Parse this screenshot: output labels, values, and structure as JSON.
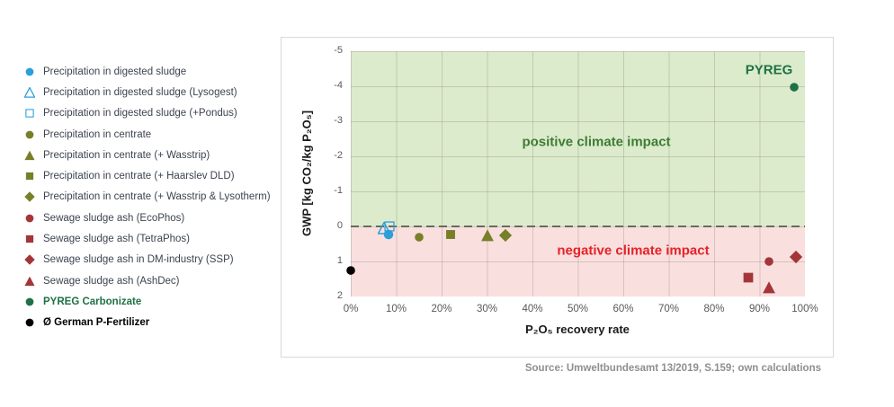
{
  "source_note": "Source: Umweltbundesamt 13/2019, S.159; own calculations",
  "legend": {
    "items": [
      {
        "id": "digested-sludge",
        "label": "Precipitation in digested sludge",
        "shape": "circle",
        "open": false,
        "color": "#2b9fd9"
      },
      {
        "id": "lysogest",
        "label": "Precipitation in digested sludge (Lysogest)",
        "shape": "triangle",
        "open": true,
        "color": "#2b9fd9"
      },
      {
        "id": "pondus",
        "label": "Precipitation in digested sludge (+Pondus)",
        "shape": "square",
        "open": true,
        "color": "#2b9fd9"
      },
      {
        "id": "centrate",
        "label": "Precipitation in centrate",
        "shape": "circle",
        "open": false,
        "color": "#778027"
      },
      {
        "id": "wasstrip",
        "label": "Precipitation in centrate (+ Wasstrip)",
        "shape": "triangle",
        "open": false,
        "color": "#778027"
      },
      {
        "id": "haarslev-dld",
        "label": "Precipitation in centrate (+ Haarslev DLD)",
        "shape": "square",
        "open": false,
        "color": "#778027"
      },
      {
        "id": "wasstrip-lysotherm",
        "label": "Precipitation in centrate (+ Wasstrip & Lysotherm)",
        "shape": "diamond",
        "open": false,
        "color": "#778027"
      },
      {
        "id": "ecophos",
        "label": "Sewage sludge ash (EcoPhos)",
        "shape": "circle",
        "open": false,
        "color": "#a33638"
      },
      {
        "id": "tetraphos",
        "label": "Sewage sludge ash (TetraPhos)",
        "shape": "square",
        "open": false,
        "color": "#a33638"
      },
      {
        "id": "ssp",
        "label": "Sewage sludge ash in DM-industry (SSP)",
        "shape": "diamond",
        "open": false,
        "color": "#a33638"
      },
      {
        "id": "ashdec",
        "label": "Sewage sludge ash (AshDec)",
        "shape": "triangle",
        "open": false,
        "color": "#a33638"
      },
      {
        "id": "pyreg-carbonizate",
        "label": "PYREG Carbonizate",
        "shape": "circle",
        "open": false,
        "color": "#1e7145",
        "label_color": "#1e7145",
        "bold": true
      },
      {
        "id": "german-p-fertilizer",
        "label": "Ø German P-Fertilizer",
        "shape": "circle",
        "open": false,
        "color": "#000000",
        "label_color": "#000000",
        "bold": true
      }
    ]
  },
  "chart": {
    "pyreg_point_label": "PYREG",
    "positive_region_label": "positive climate impact",
    "negative_region_label": "negative climate impact",
    "colors": {
      "positive_bg": "#dcebcc",
      "negative_bg": "#fadfdf",
      "positive_text": "#3e7c34",
      "negative_text": "#e52328",
      "pyreg_text": "#1e7145"
    }
  },
  "chart_data": {
    "type": "scatter",
    "title": "",
    "xlabel": "P₂O₅ recovery rate",
    "ylabel": "GWP [kg CO₂/kg P₂O₅]",
    "xlim": [
      0,
      100
    ],
    "ylim": [
      -5,
      2
    ],
    "y_axis_inverted": true,
    "grid": true,
    "x_ticks": [
      "0%",
      "10%",
      "20%",
      "30%",
      "40%",
      "50%",
      "60%",
      "70%",
      "80%",
      "90%",
      "100%"
    ],
    "y_ticks": [
      "-5",
      "-4",
      "-3",
      "-2",
      "-1",
      "0",
      "1",
      "2"
    ],
    "zero_line": {
      "style": "dashed",
      "y": 0
    },
    "regions": [
      {
        "label": "positive climate impact",
        "y_range": [
          -5,
          0
        ],
        "color": "#dcebcc"
      },
      {
        "label": "negative climate impact",
        "y_range": [
          0,
          2
        ],
        "color": "#fadfdf"
      }
    ],
    "legend_position": "outside-left",
    "series": [
      {
        "id": "digested-sludge",
        "name": "Precipitation in digested sludge",
        "marker": "circle",
        "open": false,
        "color": "#2b9fd9",
        "size": 12,
        "z": 7,
        "points": [
          [
            8.4,
            0.22
          ]
        ]
      },
      {
        "id": "lysogest",
        "name": "Precipitation in digested sludge (Lysogest)",
        "marker": "triangle",
        "open": true,
        "color": "#2b9fd9",
        "size": 14,
        "z": 6,
        "points": [
          [
            7.3,
            0.05
          ]
        ]
      },
      {
        "id": "pondus",
        "name": "Precipitation in digested sludge (+Pondus)",
        "marker": "square",
        "open": true,
        "color": "#2b9fd9",
        "size": 12,
        "z": 5,
        "points": [
          [
            8.6,
            0.0
          ]
        ]
      },
      {
        "id": "centrate",
        "name": "Precipitation in centrate",
        "marker": "circle",
        "open": false,
        "color": "#778027",
        "size": 11,
        "z": 4,
        "points": [
          [
            15,
            0.3
          ]
        ]
      },
      {
        "id": "wasstrip",
        "name": "Precipitation in centrate (+ Wasstrip)",
        "marker": "triangle",
        "open": false,
        "color": "#778027",
        "size": 15,
        "z": 4,
        "points": [
          [
            30,
            0.25
          ]
        ]
      },
      {
        "id": "haarslev-dld",
        "name": "Precipitation in centrate (+ Haarslev DLD)",
        "marker": "square",
        "open": false,
        "color": "#778027",
        "size": 12,
        "z": 4,
        "points": [
          [
            22,
            0.22
          ]
        ]
      },
      {
        "id": "wasstrip-lysotherm",
        "name": "Precipitation in centrate (+ Wasstrip & Lysotherm)",
        "marker": "diamond",
        "open": false,
        "color": "#778027",
        "size": 15,
        "z": 4,
        "points": [
          [
            34,
            0.25
          ]
        ]
      },
      {
        "id": "ecophos",
        "name": "Sewage sludge ash (EcoPhos)",
        "marker": "circle",
        "open": false,
        "color": "#a33638",
        "size": 11,
        "z": 4,
        "points": [
          [
            92,
            1.0
          ]
        ]
      },
      {
        "id": "tetraphos",
        "name": "Sewage sludge ash (TetraPhos)",
        "marker": "square",
        "open": false,
        "color": "#a33638",
        "size": 13,
        "z": 4,
        "points": [
          [
            87.5,
            1.45
          ]
        ]
      },
      {
        "id": "ssp",
        "name": "Sewage sludge ash in DM-industry (SSP)",
        "marker": "diamond",
        "open": false,
        "color": "#a33638",
        "size": 15,
        "z": 4,
        "points": [
          [
            98,
            0.88
          ]
        ]
      },
      {
        "id": "ashdec",
        "name": "Sewage sludge ash (AshDec)",
        "marker": "triangle",
        "open": false,
        "color": "#a33638",
        "size": 15,
        "z": 4,
        "points": [
          [
            92,
            1.75
          ]
        ]
      },
      {
        "id": "pyreg-carbonizate",
        "name": "PYREG Carbonizate",
        "marker": "circle",
        "open": false,
        "color": "#1e7145",
        "size": 11,
        "z": 4,
        "points": [
          [
            97.6,
            -3.97
          ]
        ]
      },
      {
        "id": "german-p-fertilizer",
        "name": "Ø German P-Fertilizer",
        "marker": "circle",
        "open": false,
        "color": "#000000",
        "size": 11,
        "z": 4,
        "points": [
          [
            0,
            1.25
          ]
        ]
      }
    ]
  }
}
